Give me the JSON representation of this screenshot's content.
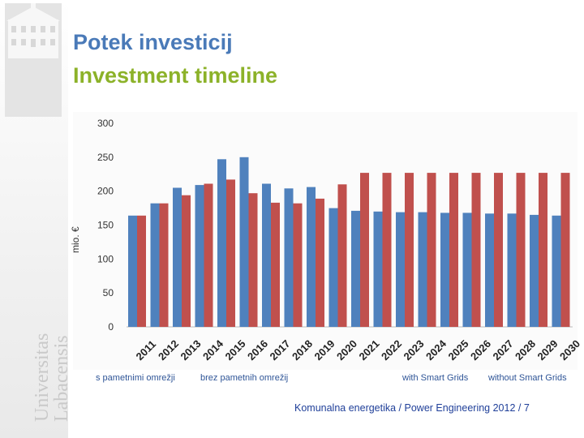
{
  "slide": {
    "title": "Potek investicij",
    "subtitle": "Investment timeline",
    "footer": "Komunalna energetika / Power Engineering 2012 / 7",
    "university_text_1": "Universitas",
    "university_text_2": "Labacensis"
  },
  "legend": {
    "item1": "s pametnimi omrežji",
    "item2": "brez pametnih omrežij",
    "item3": "with Smart Grids",
    "item4": "without Smart Grids"
  },
  "colors": {
    "series1": "#4f81bd",
    "series2": "#c0504d",
    "title": "#4a7ab8",
    "subtitle": "#8cb229"
  },
  "chart_data": {
    "type": "bar",
    "title": "",
    "xlabel": "",
    "ylabel": "mio. €",
    "ylim": [
      0,
      300
    ],
    "yticks": [
      0,
      50,
      100,
      150,
      200,
      250,
      300
    ],
    "grid": false,
    "categories": [
      "2011",
      "2012",
      "2013",
      "2014",
      "2015",
      "2016",
      "2017",
      "2018",
      "2019",
      "2020",
      "2021",
      "2022",
      "2023",
      "2024",
      "2025",
      "2026",
      "2027",
      "2028",
      "2029",
      "2030"
    ],
    "series": [
      {
        "name": "s pametnimi omrežji / with Smart Grids",
        "values": [
          164,
          182,
          205,
          209,
          247,
          250,
          211,
          204,
          206,
          175,
          171,
          170,
          169,
          169,
          168,
          168,
          167,
          167,
          165,
          164
        ]
      },
      {
        "name": "brez pametnih omrežij / without Smart Grids",
        "values": [
          164,
          182,
          194,
          211,
          217,
          197,
          183,
          182,
          189,
          210,
          227,
          227,
          227,
          227,
          227,
          227,
          227,
          227,
          227,
          227
        ]
      }
    ]
  }
}
